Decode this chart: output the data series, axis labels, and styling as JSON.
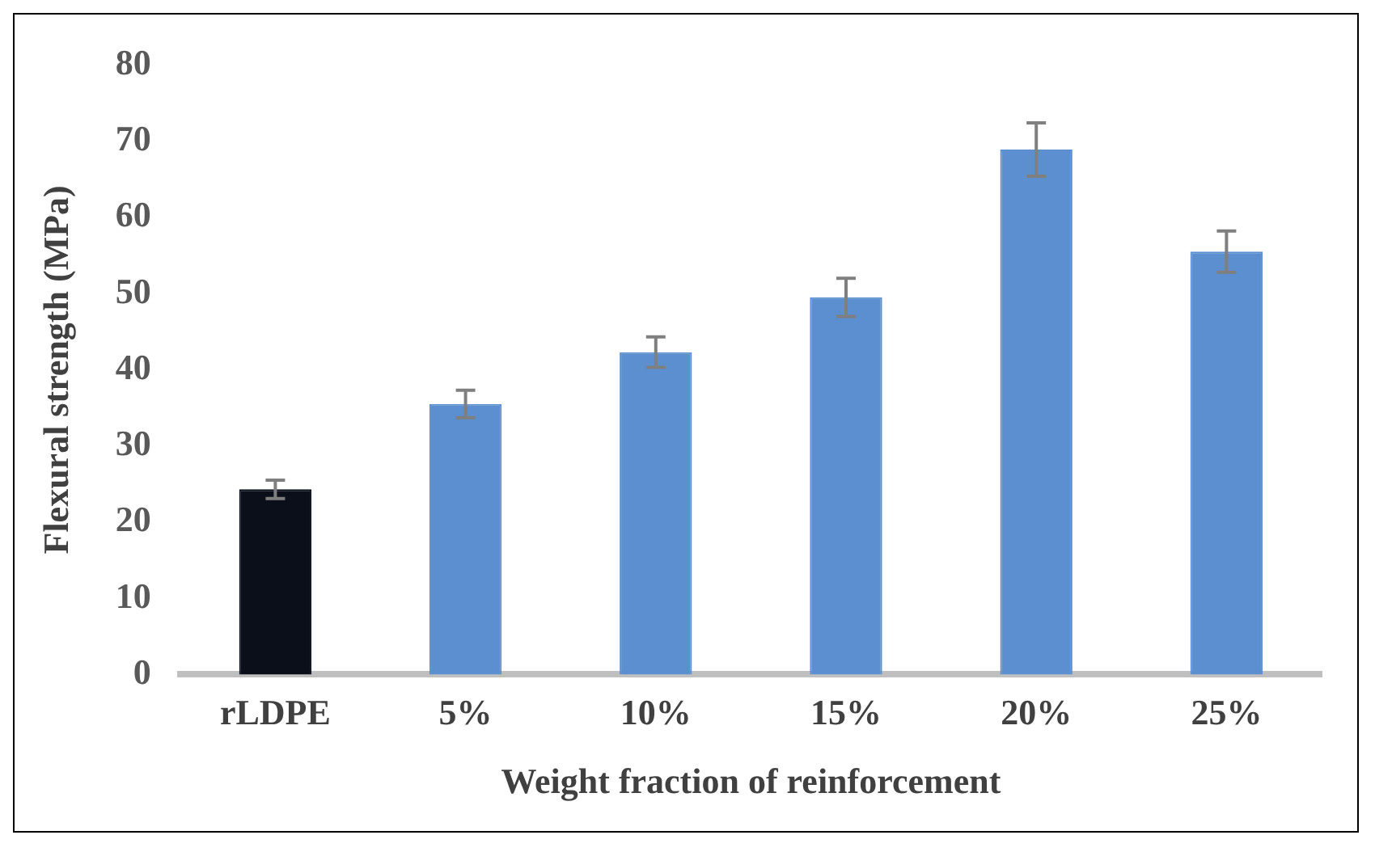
{
  "chart_data": {
    "type": "bar",
    "xlabel": "Weight fraction of reinforcement",
    "ylabel": "Flexural strength (MPa)",
    "categories": [
      "rLDPE",
      "5%",
      "10%",
      "15%",
      "20%",
      "25%"
    ],
    "values": [
      24.3,
      35.5,
      42.3,
      49.5,
      68.9,
      55.5
    ],
    "colors": [
      "#0a0f1a",
      "#5b8fd0",
      "#5b8fd0",
      "#5b8fd0",
      "#5b8fd0",
      "#5b8fd0"
    ],
    "errors": [
      1.2,
      1.8,
      2,
      2.5,
      3.5,
      2.7
    ],
    "ylim": [
      0,
      80
    ],
    "yticks": [
      0,
      10,
      20,
      30,
      40,
      50,
      60,
      70,
      80
    ],
    "grid": false
  }
}
